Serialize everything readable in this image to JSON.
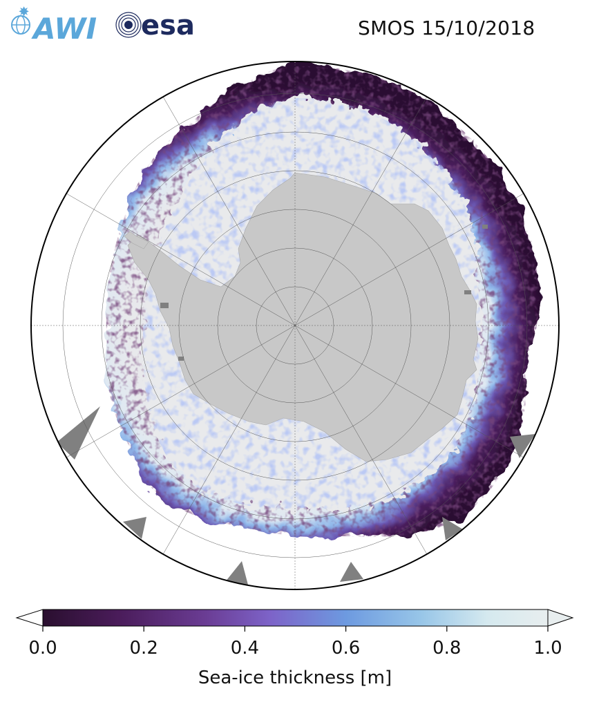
{
  "header": {
    "title": "SMOS 15/10/2018",
    "logos": [
      {
        "name": "awi-logo",
        "text": "AWI",
        "color": "#5ba7da"
      },
      {
        "name": "esa-logo",
        "text": "esa",
        "color": "#1d2a5e"
      }
    ]
  },
  "map": {
    "projection": "south-polar-stereographic",
    "land_color": "#c8c8c8",
    "open_water_color": "#ffffff",
    "no_data_color": "#808080",
    "grid_color": "#555555",
    "frame_color": "#000000"
  },
  "colorbar": {
    "label": "Sea-ice thickness [m]",
    "min": 0.0,
    "max": 1.0,
    "ticks": [
      0.0,
      0.2,
      0.4,
      0.6,
      0.8,
      1.0
    ],
    "tick_labels": [
      "0.0",
      "0.2",
      "0.4",
      "0.6",
      "0.8",
      "1.0"
    ],
    "extend": "both",
    "colors": [
      "#2a0f2f",
      "#4a1c5a",
      "#6a3c93",
      "#7d63c8",
      "#6d9ae0",
      "#98c6e8",
      "#d5e9ef",
      "#e8eeef"
    ]
  }
}
